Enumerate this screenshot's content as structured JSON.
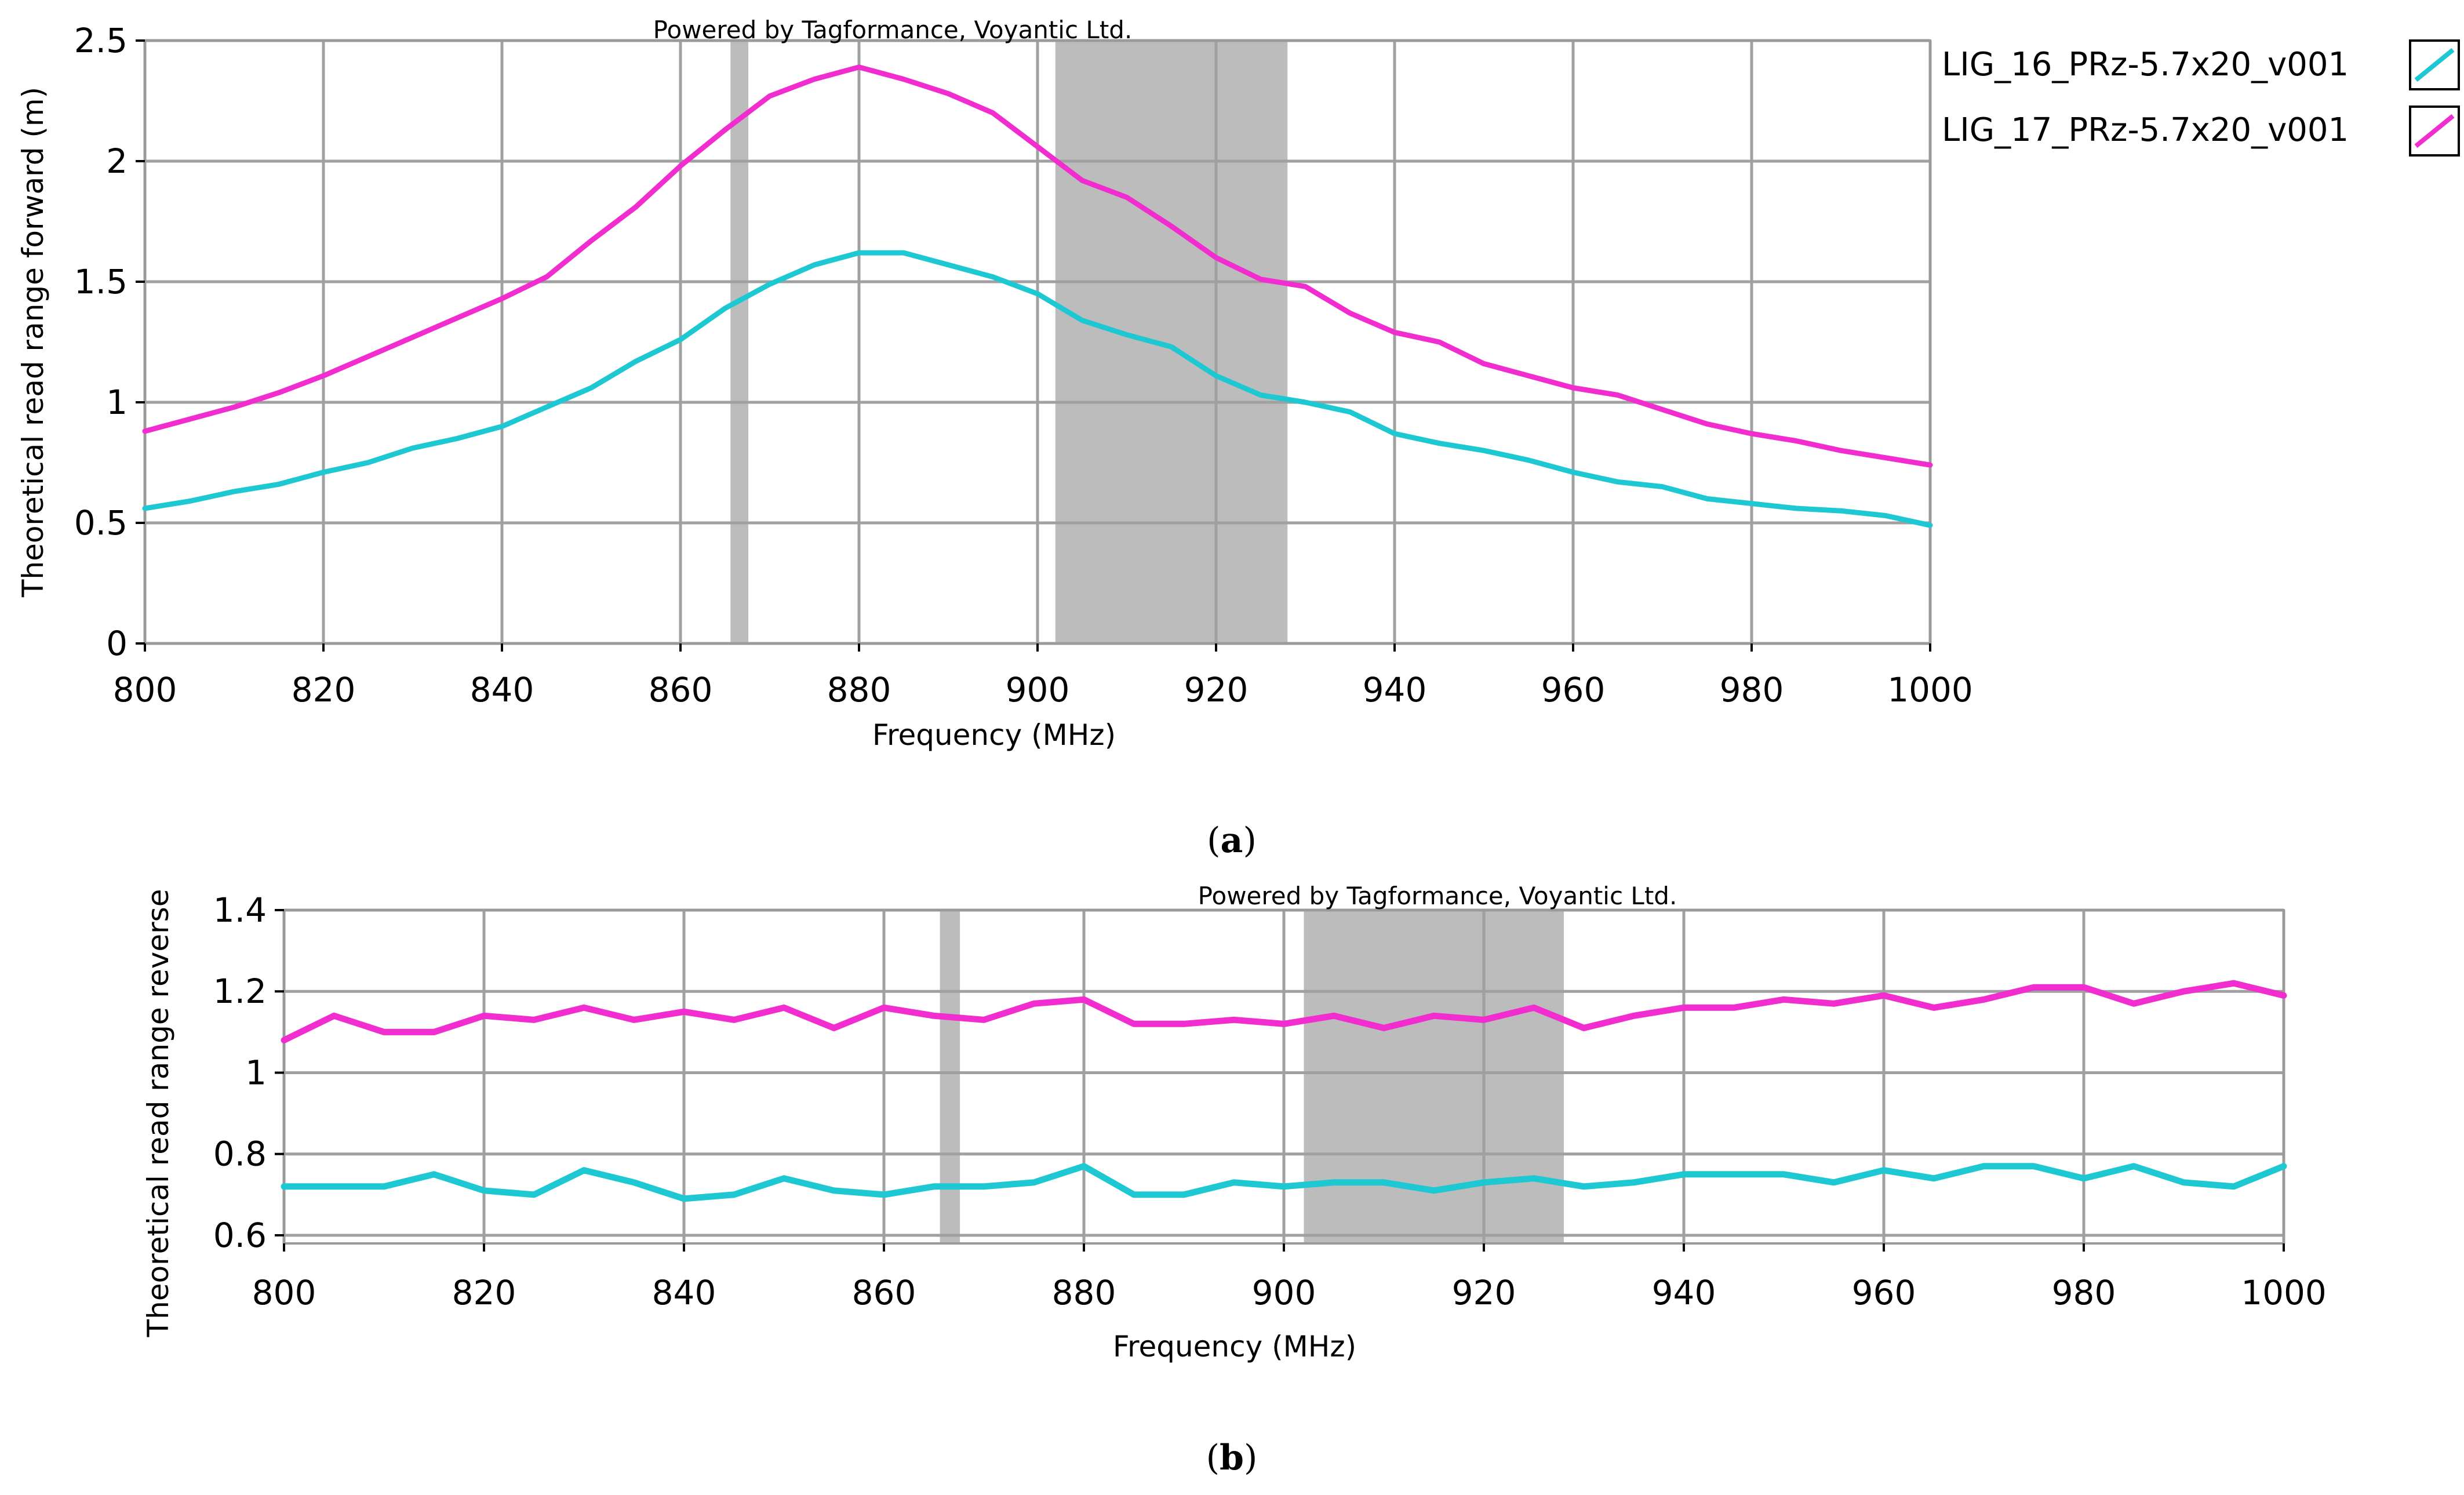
{
  "chart_data": [
    {
      "type": "line",
      "panel_label": "a",
      "watermark": "Powered by Tagformance, Voyantic Ltd.",
      "xlabel": "Frequency (MHz)",
      "ylabel": "Theoretical read range forward (m)",
      "xlim": [
        800,
        1000
      ],
      "ylim": [
        0,
        2.5
      ],
      "xticks": [
        800,
        820,
        840,
        860,
        880,
        900,
        920,
        940,
        960,
        980,
        1000
      ],
      "yticks": [
        0,
        0.5,
        1,
        1.5,
        2,
        2.5
      ],
      "ytick_labels": [
        "0",
        "0.5",
        "1",
        "1.5",
        "2",
        "2.5"
      ],
      "bands": [
        [
          865.6,
          867.6
        ],
        [
          902,
          928
        ]
      ],
      "x": [
        800,
        805,
        810,
        815,
        820,
        825,
        830,
        835,
        840,
        845,
        850,
        855,
        860,
        865,
        870,
        875,
        880,
        885,
        890,
        895,
        900,
        905,
        910,
        915,
        920,
        925,
        930,
        935,
        940,
        945,
        950,
        955,
        960,
        965,
        970,
        975,
        980,
        985,
        990,
        995,
        1000
      ],
      "series": [
        {
          "name": "LIG_16_PRz-5.7x20_v001",
          "color": "#1ec8d2",
          "values": [
            0.56,
            0.59,
            0.63,
            0.66,
            0.71,
            0.75,
            0.81,
            0.85,
            0.9,
            0.98,
            1.06,
            1.17,
            1.26,
            1.39,
            1.49,
            1.57,
            1.62,
            1.62,
            1.57,
            1.52,
            1.45,
            1.34,
            1.28,
            1.23,
            1.11,
            1.03,
            1.0,
            0.96,
            0.87,
            0.83,
            0.8,
            0.76,
            0.71,
            0.67,
            0.65,
            0.6,
            0.58,
            0.56,
            0.55,
            0.53,
            0.49
          ]
        },
        {
          "name": "LIG_17_PRz-5.7x20_v001",
          "color": "#f22dd0",
          "values": [
            0.88,
            0.93,
            0.98,
            1.04,
            1.11,
            1.19,
            1.27,
            1.35,
            1.43,
            1.52,
            1.67,
            1.81,
            1.98,
            2.13,
            2.27,
            2.34,
            2.39,
            2.34,
            2.28,
            2.2,
            2.06,
            1.92,
            1.85,
            1.73,
            1.6,
            1.51,
            1.48,
            1.37,
            1.29,
            1.25,
            1.16,
            1.11,
            1.06,
            1.03,
            0.97,
            0.91,
            0.87,
            0.84,
            0.8,
            0.77,
            0.74
          ]
        }
      ],
      "legend": "right"
    },
    {
      "type": "line",
      "panel_label": "b",
      "watermark": "Powered by Tagformance, Voyantic Ltd.",
      "xlabel": "Frequency (MHz)",
      "ylabel": "Theoretical read range reverse",
      "xlim": [
        800,
        1000
      ],
      "ylim": [
        0.58,
        1.4
      ],
      "xticks": [
        800,
        820,
        840,
        860,
        880,
        900,
        920,
        940,
        960,
        980,
        1000
      ],
      "yticks": [
        0.6,
        0.8,
        1.0,
        1.2,
        1.4
      ],
      "ytick_labels": [
        "0.6",
        "0.8",
        "1",
        "1.2",
        "1.4"
      ],
      "bands": [
        [
          865.6,
          867.6
        ],
        [
          902,
          928
        ]
      ],
      "x": [
        800,
        805,
        810,
        815,
        820,
        825,
        830,
        835,
        840,
        845,
        850,
        855,
        860,
        865,
        870,
        875,
        880,
        885,
        890,
        895,
        900,
        905,
        910,
        915,
        920,
        925,
        930,
        935,
        940,
        945,
        950,
        955,
        960,
        965,
        970,
        975,
        980,
        985,
        990,
        995,
        1000
      ],
      "series": [
        {
          "name": "LIG_16_PRz-5.7x20_v001",
          "color": "#1ec8d2",
          "values": [
            0.72,
            0.72,
            0.72,
            0.75,
            0.71,
            0.7,
            0.76,
            0.73,
            0.69,
            0.7,
            0.74,
            0.71,
            0.7,
            0.72,
            0.72,
            0.73,
            0.77,
            0.7,
            0.7,
            0.73,
            0.72,
            0.73,
            0.73,
            0.71,
            0.73,
            0.74,
            0.72,
            0.73,
            0.75,
            0.75,
            0.75,
            0.73,
            0.76,
            0.74,
            0.77,
            0.77,
            0.74,
            0.77,
            0.73,
            0.72,
            0.77
          ]
        },
        {
          "name": "LIG_17_PRz-5.7x20_v001",
          "color": "#f22dd0",
          "values": [
            1.08,
            1.14,
            1.1,
            1.1,
            1.14,
            1.13,
            1.16,
            1.13,
            1.15,
            1.13,
            1.16,
            1.11,
            1.16,
            1.14,
            1.13,
            1.17,
            1.18,
            1.12,
            1.12,
            1.13,
            1.12,
            1.14,
            1.11,
            1.14,
            1.13,
            1.16,
            1.11,
            1.14,
            1.16,
            1.16,
            1.18,
            1.17,
            1.19,
            1.16,
            1.18,
            1.21,
            1.21,
            1.17,
            1.2,
            1.22,
            1.19
          ]
        }
      ]
    }
  ],
  "legend": {
    "items": [
      {
        "label": "LIG_16_PRz-5.7x20_v001",
        "color": "#1ec8d2"
      },
      {
        "label": "LIG_17_PRz-5.7x20_v001",
        "color": "#f22dd0"
      }
    ]
  },
  "captions": {
    "a": "a",
    "b": "b"
  }
}
